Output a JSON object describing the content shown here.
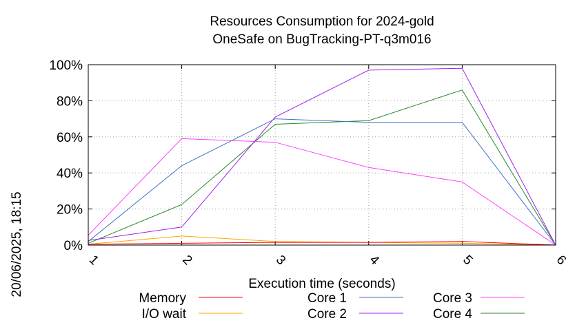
{
  "chart_data": {
    "type": "line",
    "title": "Resources Consumption for 2024-gold",
    "subtitle": "OneSafe on BugTracking-PT-q3m016",
    "xlabel": "Execution time (seconds)",
    "ylabel": "",
    "side_label": "20/06/2025, 18:15",
    "x": [
      1,
      2,
      3,
      4,
      5,
      6
    ],
    "x_ticks": [
      "1",
      "2",
      "3",
      "4",
      "5",
      "6"
    ],
    "y_ticks": [
      "0%",
      "20%",
      "40%",
      "60%",
      "80%",
      "100%"
    ],
    "xlim": [
      1,
      6
    ],
    "ylim": [
      0,
      100
    ],
    "grid": true,
    "legend_position": "bottom",
    "series": [
      {
        "name": "Memory",
        "color": "#ff0000",
        "values": [
          0.5,
          1.0,
          1.5,
          1.5,
          2.0,
          0
        ]
      },
      {
        "name": "I/O wait",
        "color": "#ffa500",
        "values": [
          0.5,
          5.0,
          2.0,
          1.5,
          1.0,
          0
        ]
      },
      {
        "name": "Core 1",
        "color": "#4472c4",
        "values": [
          2.0,
          44.0,
          70.0,
          68.0,
          68.0,
          0
        ]
      },
      {
        "name": "Core 2",
        "color": "#a020f0",
        "values": [
          2.5,
          10.0,
          71.0,
          97.0,
          98.0,
          0
        ]
      },
      {
        "name": "Core 3",
        "color": "#ff40ff",
        "values": [
          5.5,
          59.0,
          57.0,
          43.0,
          35.0,
          0
        ]
      },
      {
        "name": "Core 4",
        "color": "#228b22",
        "values": [
          1.0,
          22.5,
          67.0,
          69.0,
          86.0,
          0
        ]
      }
    ]
  }
}
